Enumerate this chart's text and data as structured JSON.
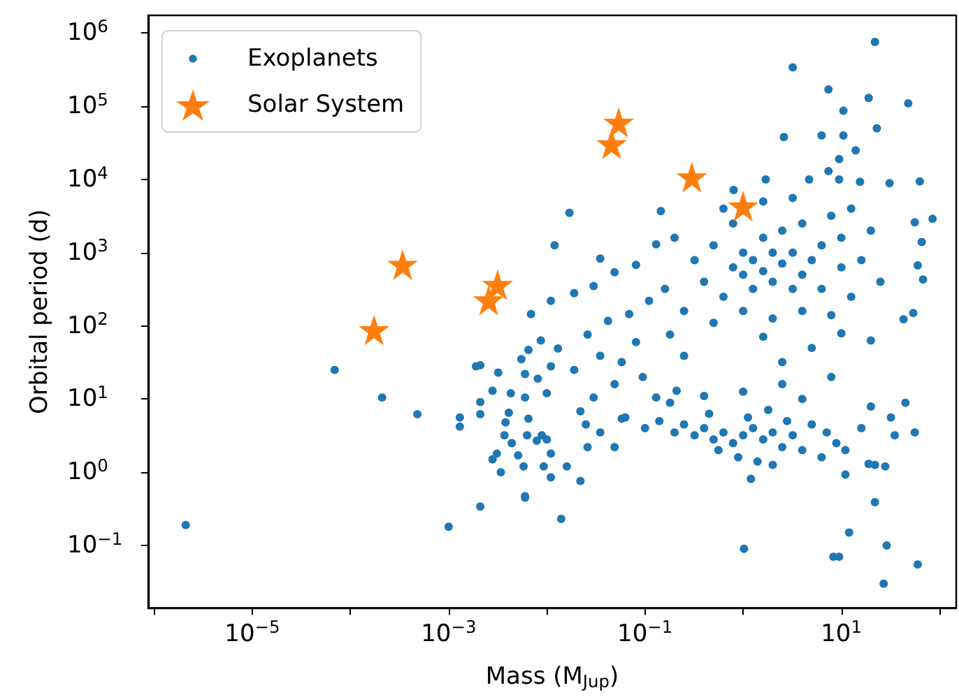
{
  "chart_data": {
    "type": "scatter",
    "xlabel": "Mass (M$_{Jup}$)",
    "ylabel": "Orbital period (d)",
    "log": "xy",
    "grid": false,
    "legend": "top left",
    "xlim": [
      8.7e-07,
      148
    ],
    "ylim": [
      0.014,
      1750000
    ],
    "xticks": [
      {
        "value": 1e-06,
        "label": null
      },
      {
        "value": 1e-05,
        "label": "10$^{−5}$"
      },
      {
        "value": 0.0001,
        "label": null
      },
      {
        "value": 0.001,
        "label": "10$^{−3}$"
      },
      {
        "value": 0.01,
        "label": null
      },
      {
        "value": 0.1,
        "label": "10$^{−1}$"
      },
      {
        "value": 1,
        "label": null
      },
      {
        "value": 10,
        "label": "10$^{1}$"
      },
      {
        "value": 100,
        "label": null
      }
    ],
    "yticks": [
      {
        "value": 0.1,
        "label": "10$^{−1}$"
      },
      {
        "value": 1,
        "label": "10$^{0}$"
      },
      {
        "value": 10,
        "label": "10$^{1}$"
      },
      {
        "value": 100,
        "label": "10$^{2}$"
      },
      {
        "value": 1000,
        "label": "10$^{3}$"
      },
      {
        "value": 10000,
        "label": "10$^{4}$"
      },
      {
        "value": 100000,
        "label": "10$^{5}$"
      },
      {
        "value": 1000000,
        "label": "10$^{6}$"
      }
    ],
    "series": [
      {
        "name": "Exoplanets",
        "color": "#1f77b4",
        "marker": "circle",
        "x": [
          2.1e-06,
          6.9e-05,
          0.00021,
          0.00048,
          0.001,
          0.0021,
          0.0013,
          0.0013,
          0.0021,
          0.0021,
          0.0034,
          0.006,
          0.014,
          0.017,
          0.012,
          1.02,
          8.3,
          9.5,
          12,
          22,
          29,
          27,
          60,
          22,
          11,
          19,
          28,
          22,
          3.2,
          7.4,
          19,
          48,
          10.5,
          2.6,
          6.3,
          10.5,
          14,
          1.7,
          63,
          85,
          56,
          66,
          60,
          68,
          43,
          54,
          0.145,
          0.8,
          4.7,
          23,
          9.5,
          7.4,
          9.5,
          15.5,
          31,
          0.0019,
          0.0032,
          0.0028,
          0.0043,
          0.0021,
          0.0041,
          0.0038,
          0.0037,
          0.0044,
          0.0031,
          0.0028,
          0.0051,
          0.0058,
          0.006,
          0.0065,
          0.0063,
          0.0055,
          0.0065,
          0.0087,
          0.006,
          0.006,
          0.0079,
          0.0093,
          0.011,
          0.011,
          0.0089,
          0.01,
          0.011,
          0.0081,
          0.013,
          0.019,
          0.026,
          0.035,
          0.049,
          0.03,
          0.022,
          0.058,
          0.081,
          0.042,
          0.069,
          0.11,
          0.095,
          0.13,
          0.058,
          0.035,
          0.026,
          0.016,
          0.022,
          0.049,
          0.0069,
          0.011,
          0.019,
          0.03,
          0.049,
          0.081,
          0.035,
          0.13,
          0.18,
          0.25,
          0.21,
          0.063,
          0.1,
          0.14,
          0.2,
          0.25,
          0.32,
          0.4,
          0.5,
          0.63,
          0.79,
          1,
          1.26,
          1.6,
          2,
          2.5,
          3.2,
          4,
          0.89,
          1.4,
          2,
          0.56,
          1.12,
          0.45,
          1.8,
          2.8,
          5,
          7.1,
          8.9,
          11,
          16,
          6.3,
          1.2,
          0.18,
          0.4,
          1,
          2.5,
          4,
          7.9,
          20,
          32,
          45,
          56,
          35,
          19,
          0.025,
          0.01,
          0.32,
          0.4,
          0.5,
          0.63,
          0.79,
          1,
          1,
          1.26,
          1.26,
          1.6,
          1.6,
          2,
          2,
          2.5,
          2.5,
          3.2,
          3.2,
          4,
          4,
          5,
          6.3,
          6.3,
          7.9,
          10,
          10,
          12.6,
          16,
          20,
          25,
          0.79,
          0.63,
          1.6,
          3.2,
          0.25,
          0.5,
          1,
          2,
          4,
          7.9,
          12.6,
          1.6,
          5,
          10,
          0.16,
          0.2,
          20,
          2.5
        ],
        "values": [
          0.19,
          25,
          10.5,
          6.2,
          0.18,
          0.34,
          5.6,
          4.2,
          6.2,
          29,
          1,
          0.47,
          0.23,
          3500,
          1260,
          0.09,
          0.07,
          0.07,
          0.15,
          0.39,
          0.1,
          0.03,
          0.055,
          1.26,
          0.93,
          1.3,
          1.2,
          760000,
          340000,
          170000,
          130000,
          110000,
          87000,
          38000,
          40000,
          40000,
          25000,
          10000,
          9400,
          2900,
          2600,
          1400,
          670,
          430,
          123,
          150,
          3700,
          7200,
          10000,
          50000,
          19000,
          13000,
          10000,
          9300,
          8900,
          28,
          23,
          13,
          12,
          9.1,
          6.5,
          4.8,
          3.2,
          2.5,
          1.8,
          1.5,
          1.7,
          1.2,
          0.45,
          5.4,
          3.2,
          35,
          47,
          63,
          22,
          10.5,
          2.7,
          1.2,
          0.85,
          1.8,
          3.2,
          12,
          28,
          19,
          49,
          25,
          76,
          39,
          16,
          10.5,
          6.8,
          32,
          60,
          117,
          145,
          220,
          20,
          10.5,
          5.4,
          3.5,
          2.2,
          1.2,
          0.76,
          2.2,
          145,
          220,
          280,
          350,
          540,
          680,
          830,
          1300,
          76,
          39,
          13,
          5.6,
          4,
          5,
          3.5,
          4.5,
          3.2,
          4,
          2.8,
          3.5,
          2.5,
          3.2,
          4,
          2.8,
          3.5,
          2.2,
          3.2,
          2,
          1.6,
          1.4,
          1.26,
          2,
          5.6,
          6.3,
          7.1,
          5,
          4.5,
          3.5,
          2.5,
          2,
          4,
          1.6,
          0.81,
          8.9,
          11,
          12.6,
          16,
          10,
          20,
          7.9,
          5.6,
          8.9,
          3.5,
          3.2,
          1.3,
          4.5,
          2.8,
          790,
          400,
          1260,
          250,
          630,
          500,
          1000,
          320,
          790,
          560,
          1600,
          400,
          1000,
          710,
          2000,
          320,
          1000,
          500,
          2500,
          790,
          1260,
          320,
          3200,
          630,
          1600,
          4000,
          790,
          2000,
          400,
          2500,
          4000,
          5000,
          5600,
          160,
          110,
          160,
          126,
          160,
          140,
          250,
          71,
          50,
          79,
          320,
          1600,
          63,
          32
        ]
      },
      {
        "name": "Solar System",
        "color": "#ff7f0e",
        "marker": "star",
        "x": [
          0.000174,
          0.00256,
          0.00315,
          0.00034,
          1,
          0.3,
          0.0457,
          0.054
        ],
        "values": [
          88,
          225,
          365,
          687,
          4333,
          10759,
          30687,
          60190
        ]
      }
    ]
  }
}
